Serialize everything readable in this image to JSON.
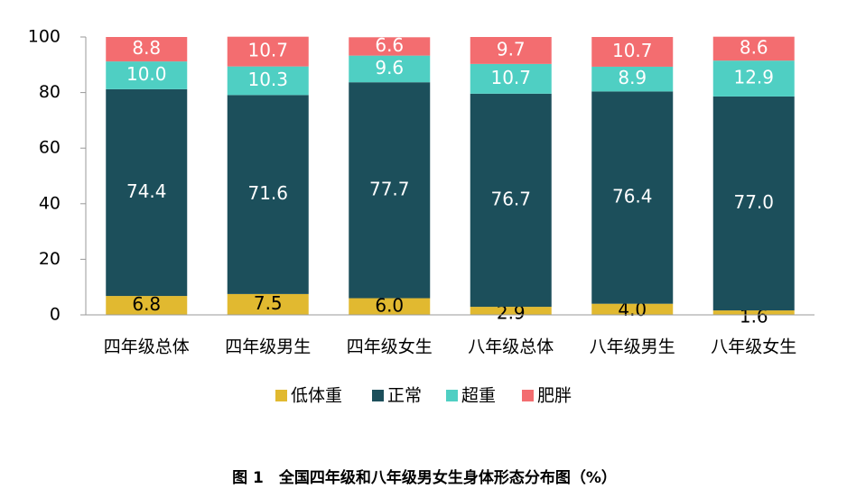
{
  "chart_data": {
    "type": "stacked_bar",
    "title": "图 1　全国四年级和八年级男女生身体形态分布图（%）",
    "categories": [
      "四年级总体",
      "四年级男生",
      "四年级女生",
      "八年级总体",
      "八年级男生",
      "八年级女生"
    ],
    "series": [
      {
        "name": "低体重",
        "color": "#e1b930",
        "values": [
          6.8,
          7.5,
          6.0,
          2.9,
          4.0,
          1.6
        ],
        "value_labels": [
          "6.8",
          "7.5",
          "6.0",
          "2.9",
          "4.0",
          "1.6"
        ]
      },
      {
        "name": "正常",
        "color": "#1c4f5b",
        "values": [
          74.4,
          71.6,
          77.7,
          76.7,
          76.4,
          77.0
        ],
        "value_labels": [
          "74.4",
          "71.6",
          "77.7",
          "76.7",
          "76.4",
          "77.0"
        ]
      },
      {
        "name": "超重",
        "color": "#4fcfc3",
        "values": [
          10.0,
          10.3,
          9.6,
          10.7,
          8.9,
          12.9
        ],
        "value_labels": [
          "10.0",
          "10.3",
          "9.6",
          "10.7",
          "8.9",
          "12.9"
        ]
      },
      {
        "name": "肥胖",
        "color": "#f36d70",
        "values": [
          8.8,
          10.7,
          6.6,
          9.7,
          10.7,
          8.6
        ],
        "value_labels": [
          "8.8",
          "10.7",
          "6.6",
          "9.7",
          "10.7",
          "8.6"
        ]
      }
    ],
    "ylim": [
      0,
      100
    ],
    "yticks": [
      0,
      20,
      40,
      60,
      80,
      100
    ],
    "grid": false,
    "legend": "bottom"
  }
}
